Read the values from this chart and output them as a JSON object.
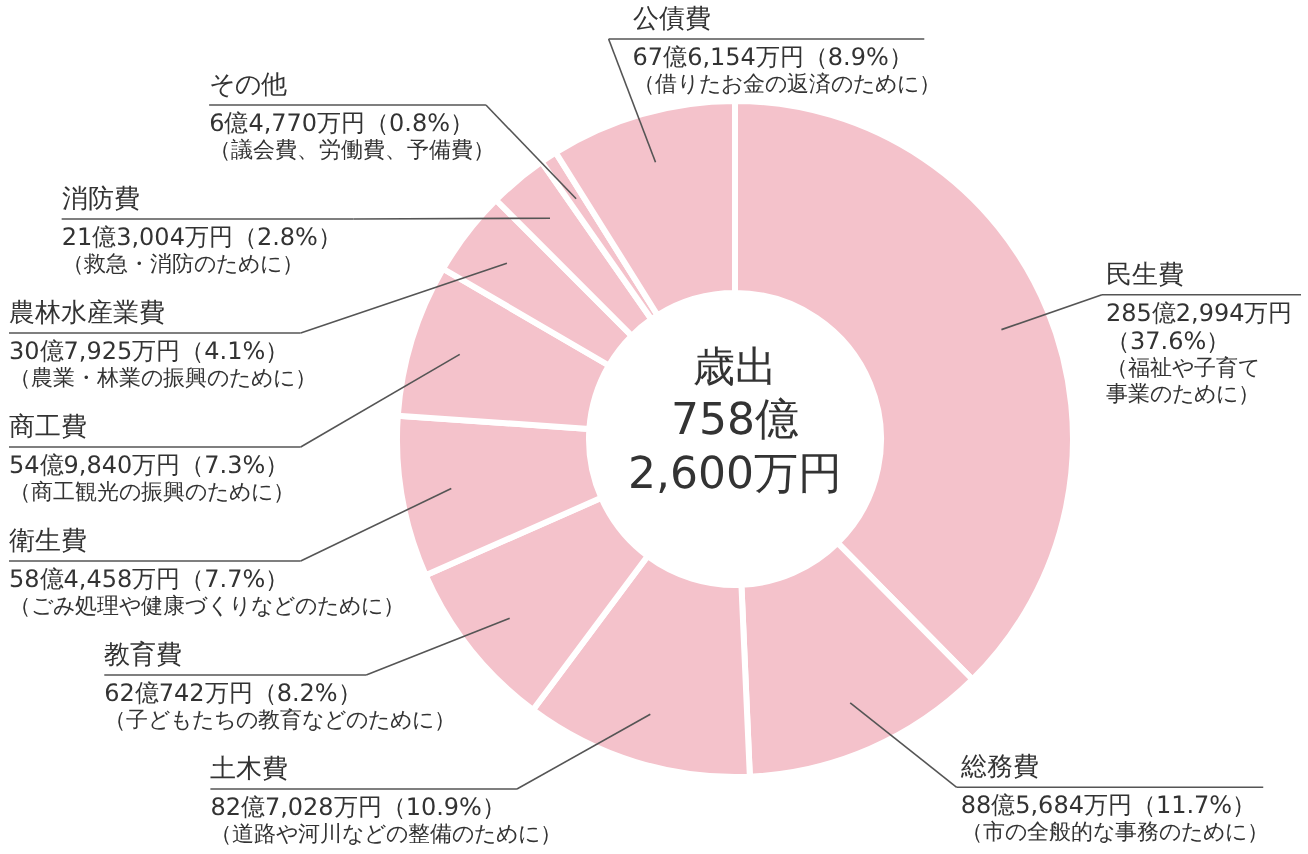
{
  "chart_data": {
    "type": "donut",
    "title": "歳出",
    "subtitle": "758億\n2,600万円",
    "categories": [
      "民生費",
      "総務費",
      "土木費",
      "教育費",
      "衛生費",
      "商工費",
      "農林水産業費",
      "消防費",
      "その他",
      "公債費"
    ],
    "values": [
      37.6,
      11.7,
      10.9,
      8.2,
      7.7,
      7.3,
      4.1,
      2.8,
      0.8,
      8.9
    ],
    "colors": [
      "#f4c2cb",
      "#f4c2cb",
      "#f4c2cb",
      "#f4c2cb",
      "#f4c2cb",
      "#f4c2cb",
      "#f4c2cb",
      "#f4c2cb",
      "#f4c2cb",
      "#f4c2cb"
    ],
    "value_labels": [
      "285億2,994万円（37.6%）",
      "88億5,684万円（11.7%）",
      "82億7,028万円（10.9%）",
      "62億742万円（8.2%）",
      "58億4,458万円（7.7%）",
      "54億9,840万円（7.3%）",
      "30億7,925万円（4.1%）",
      "21億3,004万円（2.8%）",
      "6億4,770万円（0.8%）",
      "67億6,154万円（8.9%）"
    ],
    "annotations": [
      {
        "text": "（福祉や子育て事業のために）",
        "x": "民生費"
      },
      {
        "text": "（市の全般的な事務のために）",
        "x": "総務費"
      },
      {
        "text": "（道路や河川などの整備のために）",
        "x": "土木費"
      },
      {
        "text": "（子どもたちの教育などのために）",
        "x": "教育費"
      },
      {
        "text": "（ごみ処理や健康づくりなどのために）",
        "x": "衛生費"
      },
      {
        "text": "（商工観光の振興のために）",
        "x": "商工費"
      },
      {
        "text": "（農業・林業の振興のために）",
        "x": "農林水産業費"
      },
      {
        "text": "（救急・消防のために）",
        "x": "消防費"
      },
      {
        "text": "（議会費、労働費、予備費）",
        "x": "その他"
      },
      {
        "text": "（借りたお金の返済のために）",
        "x": "公債費"
      }
    ]
  }
}
